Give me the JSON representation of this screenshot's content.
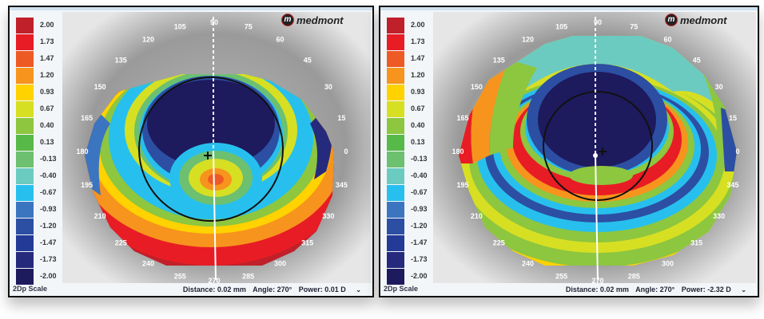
{
  "brand": {
    "logo_mark": "m",
    "logo_text": "medmont"
  },
  "scale": {
    "title": "2Dp Scale",
    "entries": [
      {
        "label": "2.00",
        "color": "#c0202a"
      },
      {
        "label": "1.73",
        "color": "#e81c24"
      },
      {
        "label": "1.47",
        "color": "#ee5a24"
      },
      {
        "label": "1.20",
        "color": "#f7941d"
      },
      {
        "label": "0.93",
        "color": "#ffd200"
      },
      {
        "label": "0.67",
        "color": "#d7df23"
      },
      {
        "label": "0.40",
        "color": "#8dc63f"
      },
      {
        "label": "0.13",
        "color": "#57b947"
      },
      {
        "label": "-0.13",
        "color": "#6cc06f"
      },
      {
        "label": "-0.40",
        "color": "#6ccbc0"
      },
      {
        "label": "-0.67",
        "color": "#27c0ee"
      },
      {
        "label": "-0.93",
        "color": "#3b75c0"
      },
      {
        "label": "-1.20",
        "color": "#2c4fa3"
      },
      {
        "label": "-1.47",
        "color": "#233a96"
      },
      {
        "label": "-1.73",
        "color": "#262a7c"
      },
      {
        "label": "-2.00",
        "color": "#1e1a5e"
      }
    ]
  },
  "axis_labels": [
    "0",
    "15",
    "30",
    "45",
    "60",
    "75",
    "90",
    "105",
    "120",
    "135",
    "150",
    "165",
    "180",
    "195",
    "210",
    "225",
    "240",
    "255",
    "270",
    "285",
    "300",
    "315",
    "330",
    "345"
  ],
  "maps": [
    {
      "id": "left",
      "status": {
        "distance": "Distance: 0.02 mm",
        "angle": "Angle: 270°",
        "power": "Power: 0.01 D"
      }
    },
    {
      "id": "right",
      "status": {
        "distance": "Distance: 0.02 mm",
        "angle": "Angle: 270°",
        "power": "Power: -2.32 D"
      }
    }
  ]
}
